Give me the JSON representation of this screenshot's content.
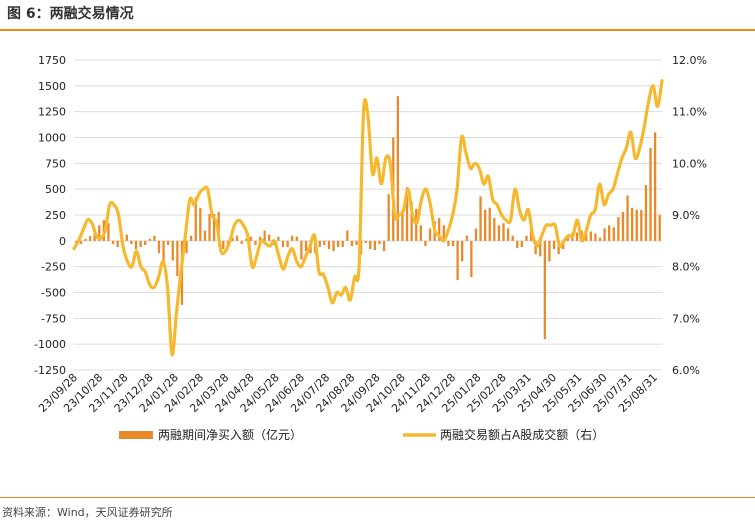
{
  "figure": {
    "title": "图 6：两融交易情况",
    "source": "资料来源：Wind，天风证券研究所"
  },
  "colors": {
    "bars": "#e8892a",
    "line": "#f5b82e",
    "rule": "#ef8a17",
    "grid": "#dcdcdc"
  },
  "chart_data": {
    "type": "bar+line",
    "title": "",
    "legend_position": "bottom",
    "y_left": {
      "min": -1250,
      "max": 1750,
      "ticks": [
        -1250,
        -1000,
        -750,
        -500,
        -250,
        0,
        250,
        500,
        750,
        1000,
        1250,
        1500,
        1750
      ]
    },
    "y_right": {
      "min": 6.0,
      "max": 12.0,
      "ticks": [
        "6.0%",
        "7.0%",
        "8.0%",
        "9.0%",
        "10.0%",
        "11.0%",
        "12.0%"
      ]
    },
    "x_tick_labels": [
      "23/09/28",
      "23/10/28",
      "23/11/28",
      "23/12/28",
      "24/01/28",
      "24/02/28",
      "24/03/28",
      "24/04/28",
      "24/05/28",
      "24/06/28",
      "24/07/28",
      "24/08/28",
      "24/09/28",
      "24/10/28",
      "24/11/28",
      "24/12/28",
      "25/01/28",
      "25/02/28",
      "25/03/31",
      "25/04/30",
      "25/05/31",
      "25/06/30",
      "25/07/31",
      "25/08/31"
    ],
    "series": [
      {
        "name": "两融期间净买入额（亿元）",
        "type": "bar",
        "axis": "left",
        "values": [
          -20,
          -30,
          20,
          45,
          80,
          150,
          200,
          170,
          -30,
          -60,
          30,
          60,
          -30,
          -80,
          -60,
          -40,
          20,
          50,
          -120,
          -200,
          -40,
          -190,
          -340,
          -620,
          -120,
          50,
          420,
          320,
          100,
          260,
          260,
          280,
          -80,
          -40,
          30,
          50,
          -30,
          20,
          40,
          -40,
          40,
          100,
          60,
          -40,
          40,
          -60,
          -60,
          50,
          40,
          -180,
          -100,
          -120,
          -120,
          -60,
          -40,
          -80,
          -100,
          -60,
          -60,
          100,
          -50,
          -40,
          -130,
          -20,
          -80,
          -90,
          -30,
          -100,
          450,
          1000,
          1400,
          300,
          520,
          380,
          310,
          150,
          -50,
          120,
          190,
          220,
          150,
          -50,
          -50,
          -380,
          -200,
          50,
          -350,
          120,
          430,
          300,
          320,
          220,
          150,
          170,
          120,
          50,
          -70,
          -60,
          50,
          120,
          -130,
          -150,
          -950,
          -200,
          -80,
          -130,
          -80,
          40,
          80,
          80,
          100,
          100,
          90,
          70,
          30,
          120,
          150,
          130,
          230,
          280,
          440,
          320,
          300,
          300,
          540,
          900,
          1050,
          250
        ]
      },
      {
        "name": "两融交易额占A股成交额（右）",
        "type": "line",
        "axis": "right",
        "values": [
          8.35,
          8.5,
          8.7,
          8.9,
          8.85,
          8.6,
          8.55,
          8.7,
          9.2,
          9.2,
          9.0,
          8.4,
          8.1,
          8.0,
          8.3,
          8.0,
          7.9,
          7.65,
          7.6,
          7.8,
          8.1,
          7.6,
          6.3,
          7.1,
          7.9,
          8.6,
          9.3,
          9.2,
          9.4,
          9.5,
          9.5,
          9.0,
          8.85,
          8.3,
          8.3,
          8.5,
          8.8,
          8.9,
          8.8,
          8.6,
          8.0,
          8.2,
          8.5,
          8.45,
          8.4,
          8.5,
          8.2,
          7.95,
          8.2,
          8.35,
          8.1,
          8.0,
          8.2,
          8.4,
          8.6,
          7.9,
          7.85,
          7.6,
          7.3,
          7.5,
          7.45,
          7.6,
          7.35,
          7.8,
          8.0,
          11.0,
          10.9,
          9.8,
          10.1,
          9.6,
          10.1,
          10.0,
          9.0,
          9.0,
          9.1,
          9.5,
          9.0,
          8.85,
          9.3,
          9.5,
          9.2,
          8.7,
          8.6,
          8.5,
          8.7,
          9.0,
          9.5,
          10.5,
          10.2,
          9.9,
          10.0,
          9.9,
          9.6,
          9.75,
          9.3,
          9.2,
          9.0,
          8.9,
          8.9,
          9.5,
          9.1,
          8.9,
          9.1,
          8.6,
          8.4,
          8.6,
          8.8,
          8.8,
          8.8,
          8.4,
          8.5,
          8.6,
          8.6,
          8.9,
          8.5,
          8.7,
          9.0,
          9.1,
          9.6,
          9.2,
          9.4,
          9.5,
          9.8,
          10.1,
          10.3,
          10.6,
          10.1,
          10.3,
          10.7,
          11.2,
          11.5,
          11.1,
          11.6
        ]
      }
    ]
  }
}
